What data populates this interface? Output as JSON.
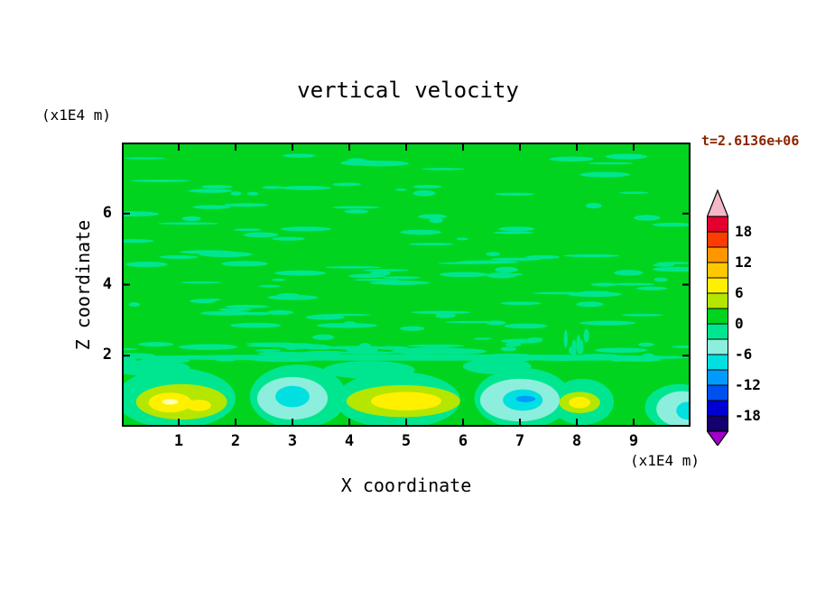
{
  "colors": {
    "page_background": "#ffffff",
    "axis": "#000000",
    "text": "#000000",
    "time_label": "#8b2500"
  },
  "chart_data": {
    "type": "contour",
    "title": "vertical velocity",
    "time_label": "t=2.6136e+06",
    "x_axis": {
      "label": "X coordinate",
      "unit_label": "(x1E4 m)",
      "tick_labels": [
        "1",
        "2",
        "3",
        "4",
        "5",
        "6",
        "7",
        "8",
        "9"
      ],
      "tick_values": [
        1,
        2,
        3,
        4,
        5,
        6,
        7,
        8,
        9
      ],
      "range": [
        0,
        10
      ]
    },
    "y_axis": {
      "label": "Z coordinate",
      "unit_label": "(x1E4 m)",
      "tick_labels": [
        "2",
        "4",
        "6"
      ],
      "tick_values": [
        2,
        4,
        6
      ],
      "range": [
        0,
        8
      ]
    },
    "colorbar": {
      "tick_labels": [
        "18",
        "12",
        "6",
        "0",
        "-6",
        "-12",
        "-18"
      ],
      "tick_values": [
        18,
        12,
        6,
        0,
        -6,
        -12,
        -18
      ],
      "levels": [
        -21,
        -18,
        -15,
        -12,
        -9,
        -6,
        -3,
        0,
        3,
        6,
        9,
        12,
        15,
        18,
        21
      ],
      "segment_colors_top_to_bottom": [
        "#e4002c",
        "#ff3c00",
        "#ff9600",
        "#ffc800",
        "#fff000",
        "#b4e600",
        "#00d41e",
        "#00e690",
        "#8ceedc",
        "#00e0e0",
        "#009bff",
        "#0050f0",
        "#0000d2",
        "#14006e"
      ],
      "over_arrow_color": "#f4b8c6",
      "under_arrow_color": "#a000c8"
    },
    "field": {
      "background_value_range": [
        0,
        3
      ],
      "background_color": "#00d41e",
      "streak_color": "#00e690",
      "features": [
        {
          "x": 0.95,
          "z": 0.8,
          "rx": 1.05,
          "ry": 0.85,
          "value": -1.5
        },
        {
          "x": 3.1,
          "z": 0.85,
          "rx": 0.85,
          "ry": 0.9,
          "value": -1.5
        },
        {
          "x": 4.85,
          "z": 0.75,
          "rx": 1.1,
          "ry": 0.8,
          "value": -1.5
        },
        {
          "x": 7.05,
          "z": 0.8,
          "rx": 0.85,
          "ry": 0.85,
          "value": -1.5
        },
        {
          "x": 8.1,
          "z": 0.7,
          "rx": 0.55,
          "ry": 0.65,
          "value": -1.5
        },
        {
          "x": 9.8,
          "z": 0.55,
          "rx": 0.6,
          "ry": 0.65,
          "value": -1.5
        },
        {
          "x": 5.0,
          "z": 1.95,
          "rx": 5.1,
          "ry": 0.09,
          "value": -1.5
        },
        {
          "x": 0.5,
          "z": 1.65,
          "rx": 0.7,
          "ry": 0.22,
          "value": -1.5
        },
        {
          "x": 4.35,
          "z": 1.6,
          "rx": 0.8,
          "ry": 0.25,
          "value": -1.5
        },
        {
          "x": 6.6,
          "z": 1.7,
          "rx": 0.6,
          "ry": 0.22,
          "value": -1.5
        },
        {
          "x": 3.0,
          "z": 0.8,
          "rx": 0.62,
          "ry": 0.6,
          "value": -4.5
        },
        {
          "x": 7.0,
          "z": 0.75,
          "rx": 0.7,
          "ry": 0.6,
          "value": -4.5
        },
        {
          "x": 9.85,
          "z": 0.5,
          "rx": 0.45,
          "ry": 0.5,
          "value": -4.5
        },
        {
          "x": 3.0,
          "z": 0.85,
          "rx": 0.3,
          "ry": 0.3,
          "value": -7.5
        },
        {
          "x": 7.05,
          "z": 0.75,
          "rx": 0.35,
          "ry": 0.3,
          "value": -7.5
        },
        {
          "x": 9.95,
          "z": 0.45,
          "rx": 0.2,
          "ry": 0.25,
          "value": -7.5
        },
        {
          "x": 7.1,
          "z": 0.78,
          "rx": 0.17,
          "ry": 0.09,
          "value": -10.5
        },
        {
          "x": 1.05,
          "z": 0.7,
          "rx": 0.8,
          "ry": 0.5,
          "value": 4.5
        },
        {
          "x": 4.95,
          "z": 0.72,
          "rx": 1.0,
          "ry": 0.45,
          "value": 4.5
        },
        {
          "x": 8.05,
          "z": 0.68,
          "rx": 0.36,
          "ry": 0.3,
          "value": 4.5
        },
        {
          "x": 0.85,
          "z": 0.68,
          "rx": 0.38,
          "ry": 0.28,
          "value": 7.5
        },
        {
          "x": 1.35,
          "z": 0.6,
          "rx": 0.22,
          "ry": 0.16,
          "value": 7.5
        },
        {
          "x": 5.0,
          "z": 0.72,
          "rx": 0.62,
          "ry": 0.26,
          "value": 7.5
        },
        {
          "x": 8.05,
          "z": 0.68,
          "rx": 0.19,
          "ry": 0.16,
          "value": 7.5
        },
        {
          "x": 0.85,
          "z": 0.7,
          "rx": 0.14,
          "ry": 0.08,
          "color": "#ffffaa"
        }
      ]
    }
  }
}
